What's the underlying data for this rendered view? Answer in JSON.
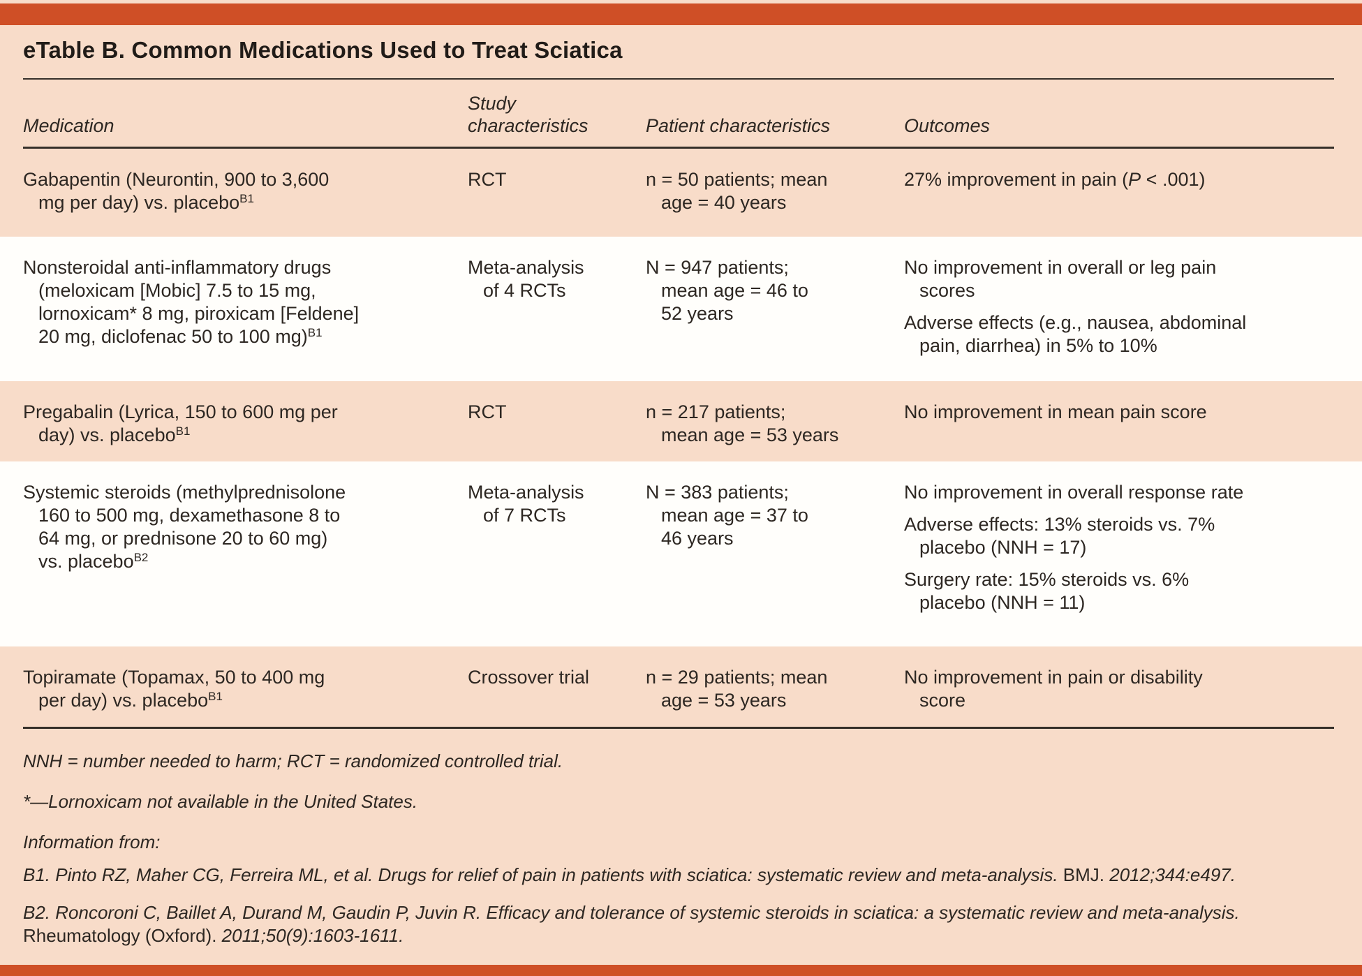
{
  "table": {
    "title": "eTable B. Common Medications Used to Treat Sciatica",
    "columns": {
      "medication": "Medication",
      "study": "Study\ncharacteristics",
      "patient": "Patient characteristics",
      "outcomes": "Outcomes"
    },
    "rows": [
      {
        "medication": "Gabapentin (Neurontin, 900 to 3,600\nmg per day) vs. placebo",
        "medication_ref": "B1",
        "study": "RCT",
        "patient": "n = 50 patients; mean\nage = 40 years",
        "outcomes": [
          {
            "pre": "27% improvement in pain (",
            "italic": "P",
            "post": " < .001)"
          }
        ]
      },
      {
        "medication": "Nonsteroidal anti-inflammatory drugs\n(meloxicam [Mobic] 7.5 to 15 mg,\nlornoxicam* 8 mg, piroxicam [Feldene]\n20 mg, diclofenac 50 to 100 mg)",
        "medication_ref": "B1",
        "study": "Meta-analysis\nof 4 RCTs",
        "patient": "N = 947 patients;\nmean age = 46 to\n52 years",
        "outcomes": [
          {
            "text": "No improvement in overall or leg pain\nscores"
          },
          {
            "text": "Adverse effects (e.g., nausea, abdominal\npain, diarrhea) in 5% to 10%"
          }
        ]
      },
      {
        "medication": "Pregabalin (Lyrica, 150 to 600 mg per\nday) vs. placebo",
        "medication_ref": "B1",
        "study": "RCT",
        "patient": "n = 217 patients;\nmean age = 53 years",
        "outcomes": [
          {
            "text": "No improvement in mean pain score"
          }
        ]
      },
      {
        "medication": "Systemic steroids (methylprednisolone\n160 to 500 mg, dexamethasone 8 to\n64 mg, or prednisone 20 to 60 mg)\nvs. placebo",
        "medication_ref": "B2",
        "study": "Meta-analysis\nof 7 RCTs",
        "patient": "N = 383 patients;\nmean age = 37 to\n46 years",
        "outcomes": [
          {
            "text": "No improvement in overall response rate"
          },
          {
            "text": "Adverse effects: 13% steroids vs. 7%\nplacebo (NNH = 17)"
          },
          {
            "text": "Surgery rate: 15% steroids vs. 6%\nplacebo (NNH = 11)"
          }
        ]
      },
      {
        "medication": "Topiramate (Topamax, 50 to 400 mg\nper day) vs. placebo",
        "medication_ref": "B1",
        "study": "Crossover trial",
        "patient": "n = 29 patients; mean\nage = 53 years",
        "outcomes": [
          {
            "text": "No improvement in pain or disability\nscore"
          }
        ]
      }
    ]
  },
  "footnotes": {
    "abbreviations": "NNH = number needed to harm; RCT = randomized controlled trial.",
    "asterisk": "*—Lornoxicam not available in the United States.",
    "info_label": "Information from:",
    "reference_b1": {
      "text": "B1. Pinto RZ, Maher CG, Ferreira ML, et al. Drugs for relief of pain in patients with sciatica: systematic review and meta-analysis. ",
      "journal": "BMJ.",
      "citation": " 2012;344:e497."
    },
    "reference_b2": {
      "text": "B2. Roncoroni C, Baillet A, Durand M, Gaudin P, Juvin R. Efficacy and tolerance of systemic steroids in sciatica: a systematic review and meta-analysis. ",
      "journal": "Rheumatology (Oxford).",
      "citation": " 2011;50(9):1603-1611."
    }
  },
  "colors": {
    "accent_bar": "#cf4f26",
    "row_stripe": "#f8dcc9",
    "row_white": "#fffefb",
    "text": "#2d2722",
    "rule": "#36302a"
  }
}
